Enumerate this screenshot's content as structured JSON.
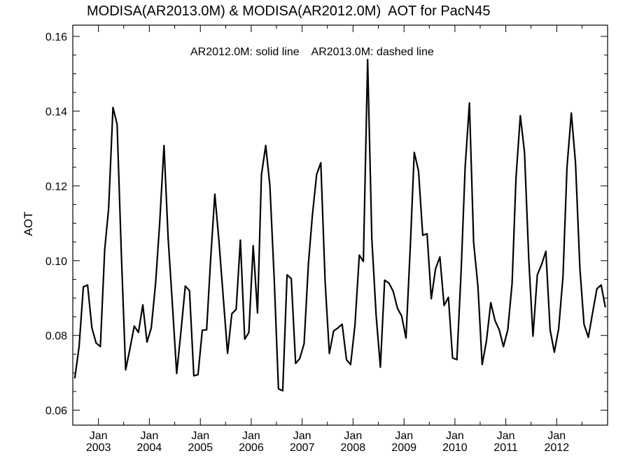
{
  "chart_data": {
    "type": "line",
    "title": "MODISA(AR2013.0M) & MODISA(AR2012.0M)  AOT for PacN45",
    "annotation": "AR2012.0M: solid line    AR2013.0M: dashed line",
    "ylabel": "AOT",
    "xlabel": "",
    "ylim": [
      0.056,
      0.163
    ],
    "yticks": [
      0.06,
      0.08,
      0.1,
      0.12,
      0.14,
      0.16
    ],
    "ytick_labels": [
      "0.06",
      "0.08",
      "0.10",
      "0.12",
      "0.14",
      "0.16"
    ],
    "xlim": [
      "2002-07-01",
      "2012-12-31"
    ],
    "xticks": [
      {
        "date": "2003-01-01",
        "month": "Jan",
        "year": "2003"
      },
      {
        "date": "2004-01-01",
        "month": "Jan",
        "year": "2004"
      },
      {
        "date": "2005-01-01",
        "month": "Jan",
        "year": "2005"
      },
      {
        "date": "2006-01-01",
        "month": "Jan",
        "year": "2006"
      },
      {
        "date": "2007-01-01",
        "month": "Jan",
        "year": "2007"
      },
      {
        "date": "2008-01-01",
        "month": "Jan",
        "year": "2008"
      },
      {
        "date": "2009-01-01",
        "month": "Jan",
        "year": "2009"
      },
      {
        "date": "2010-01-01",
        "month": "Jan",
        "year": "2010"
      },
      {
        "date": "2011-01-01",
        "month": "Jan",
        "year": "2011"
      },
      {
        "date": "2012-01-01",
        "month": "Jan",
        "year": "2012"
      }
    ],
    "grid": false,
    "series": [
      {
        "line_style": "solid",
        "color": "#000000",
        "x": [
          "2002-07",
          "2002-08",
          "2002-09",
          "2002-10",
          "2002-11",
          "2002-12",
          "2003-01",
          "2003-02",
          "2003-03",
          "2003-04",
          "2003-05",
          "2003-06",
          "2003-07",
          "2003-08",
          "2003-09",
          "2003-10",
          "2003-11",
          "2003-12",
          "2004-01",
          "2004-02",
          "2004-03",
          "2004-04",
          "2004-05",
          "2004-06",
          "2004-07",
          "2004-08",
          "2004-09",
          "2004-10",
          "2004-11",
          "2004-12",
          "2005-01",
          "2005-02",
          "2005-03",
          "2005-04",
          "2005-05",
          "2005-06",
          "2005-07",
          "2005-08",
          "2005-09",
          "2005-10",
          "2005-11",
          "2005-12",
          "2006-01",
          "2006-02",
          "2006-03",
          "2006-04",
          "2006-05",
          "2006-06",
          "2006-07",
          "2006-08",
          "2006-09",
          "2006-10",
          "2006-11",
          "2006-12",
          "2007-01",
          "2007-02",
          "2007-03",
          "2007-04",
          "2007-05",
          "2007-06",
          "2007-07",
          "2007-08",
          "2007-09",
          "2007-10",
          "2007-11",
          "2007-12",
          "2008-01",
          "2008-02",
          "2008-03",
          "2008-04",
          "2008-05",
          "2008-06",
          "2008-07",
          "2008-08",
          "2008-09",
          "2008-10",
          "2008-11",
          "2008-12",
          "2009-01",
          "2009-02",
          "2009-03",
          "2009-04",
          "2009-05",
          "2009-06",
          "2009-07",
          "2009-08",
          "2009-09",
          "2009-10",
          "2009-11",
          "2009-12",
          "2010-01",
          "2010-02",
          "2010-03",
          "2010-04",
          "2010-05",
          "2010-06",
          "2010-07",
          "2010-08",
          "2010-09",
          "2010-10",
          "2010-11",
          "2010-12",
          "2011-01",
          "2011-02",
          "2011-03",
          "2011-04",
          "2011-05",
          "2011-06",
          "2011-07",
          "2011-08",
          "2011-09",
          "2011-10",
          "2011-11",
          "2011-12",
          "2012-01",
          "2012-02",
          "2012-03",
          "2012-04",
          "2012-05",
          "2012-06",
          "2012-07",
          "2012-08",
          "2012-09",
          "2012-10",
          "2012-11",
          "2012-12"
        ],
        "values": [
          0.0685,
          0.077,
          0.093,
          0.0935,
          0.082,
          0.078,
          0.077,
          0.103,
          0.114,
          0.141,
          0.1365,
          0.101,
          0.0708,
          0.0765,
          0.0825,
          0.0808,
          0.0882,
          0.0782,
          0.082,
          0.094,
          0.11,
          0.1308,
          0.106,
          0.088,
          0.0698,
          0.0812,
          0.0932,
          0.092,
          0.0692,
          0.0695,
          0.0814,
          0.0815,
          0.1,
          0.1178,
          0.105,
          0.0898,
          0.0752,
          0.0858,
          0.087,
          0.1055,
          0.079,
          0.0808,
          0.104,
          0.086,
          0.123,
          0.1308,
          0.12,
          0.0948,
          0.0657,
          0.0652,
          0.0962,
          0.0952,
          0.0725,
          0.0738,
          0.0778,
          0.0992,
          0.112,
          0.123,
          0.1262,
          0.0942,
          0.0752,
          0.0812,
          0.082,
          0.083,
          0.0735,
          0.0722,
          0.0828,
          0.1015,
          0.0998,
          0.1538,
          0.1058,
          0.0852,
          0.0715,
          0.0948,
          0.094,
          0.0918,
          0.0872,
          0.0852,
          0.0793,
          0.104,
          0.129,
          0.124,
          0.1068,
          0.1072,
          0.0898,
          0.0978,
          0.101,
          0.088,
          0.0902,
          0.074,
          0.0735,
          0.0978,
          0.125,
          0.1422,
          0.105,
          0.093,
          0.0722,
          0.0785,
          0.0888,
          0.084,
          0.0815,
          0.077,
          0.0815,
          0.094,
          0.122,
          0.1388,
          0.129,
          0.1,
          0.0798,
          0.0962,
          0.099,
          0.1025,
          0.0815,
          0.0755,
          0.0818,
          0.0958,
          0.125,
          0.1395,
          0.126,
          0.098,
          0.083,
          0.0795,
          0.0862,
          0.0925,
          0.0935,
          0.0875
        ]
      }
    ]
  }
}
